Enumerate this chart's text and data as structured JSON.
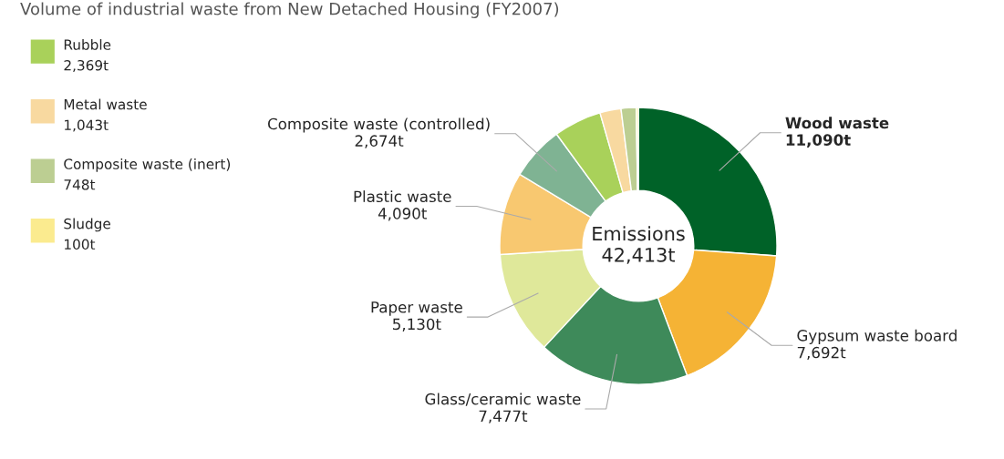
{
  "chart_data": {
    "type": "donut",
    "title": "Volume of industrial waste from New Detached Housing (FY2007)",
    "categories": [
      "Wood waste",
      "Gypsum waste board",
      "Glass/ceramic waste",
      "Paper waste",
      "Plastic waste",
      "Composite waste (controlled)",
      "Rubble",
      "Metal waste",
      "Composite waste (inert)",
      "Sludge"
    ],
    "values": [
      11090,
      7692,
      7477,
      5130,
      4090,
      2674,
      2369,
      1043,
      748,
      100
    ],
    "value_labels": [
      "11,090t",
      "7,692t",
      "7,477t",
      "5,130t",
      "4,090t",
      "2,674t",
      "2,369t",
      "1,043t",
      "748t",
      "100t"
    ],
    "colors": [
      "#006228",
      "#f5b335",
      "#3e8a5a",
      "#dfe89a",
      "#f8c870",
      "#7fb393",
      "#a9d15a",
      "#f8d9a0",
      "#bcce92",
      "#fbeb8f"
    ],
    "annotations": [
      "Emissions\n42,413t"
    ],
    "legend": "top left"
  }
}
